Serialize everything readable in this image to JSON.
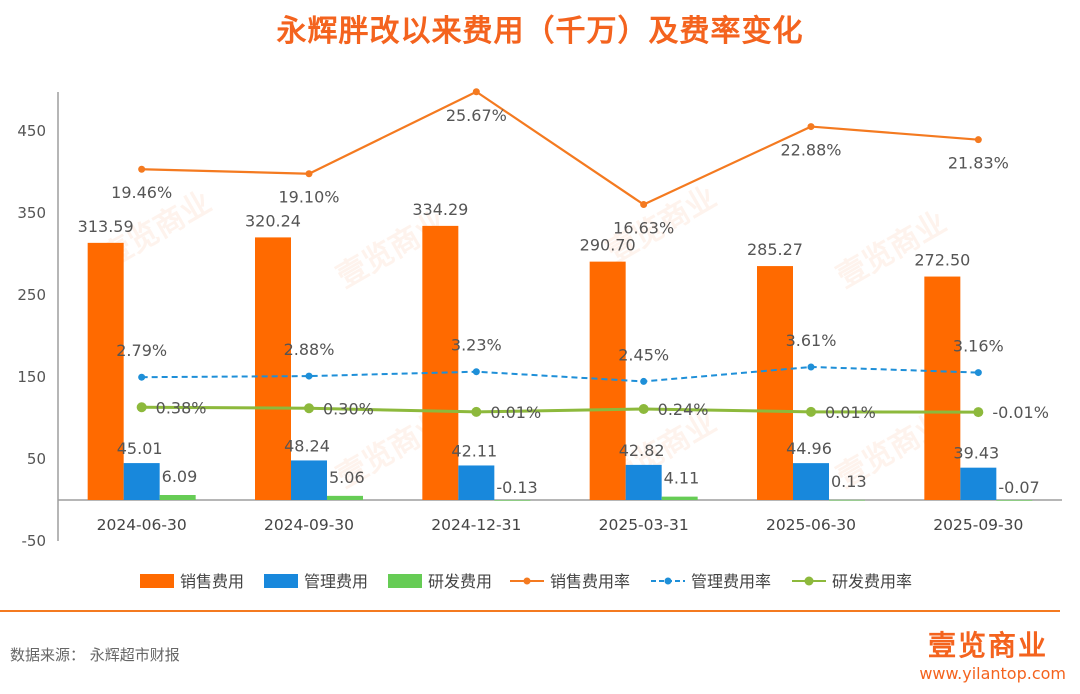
{
  "title": "永辉胖改以来费用（千万）及费率变化",
  "source": "数据来源：  永辉超市财报",
  "brand": {
    "logo": "壹览商业",
    "url": "www.yilantop.com"
  },
  "colors": {
    "title": "#F4631E",
    "sales": "#FF6A00",
    "admin": "#1888DC",
    "rd": "#66CC55",
    "rate_sales": "#F47A20",
    "rate_admin": "#1E8FD8",
    "rate_rd": "#8DB93C",
    "footer_rule": "#F47A20"
  },
  "chart_data": {
    "type": "bar",
    "categories": [
      "2024-06-30",
      "2024-09-30",
      "2024-12-31",
      "2025-03-31",
      "2025-06-30",
      "2025-09-30"
    ],
    "y_ticks": [
      "450",
      "350",
      "250",
      "150",
      "50",
      "-50"
    ],
    "ylim": [
      -50,
      480
    ],
    "grid": false,
    "legend_position": "bottom",
    "bar_series": [
      {
        "name": "销售费用",
        "values": [
          313.59,
          320.24,
          334.29,
          290.7,
          285.27,
          272.5
        ],
        "labels": [
          "313.59",
          "320.24",
          "334.29",
          "290.70",
          "285.27",
          "272.50"
        ]
      },
      {
        "name": "管理费用",
        "values": [
          45.01,
          48.24,
          42.11,
          42.82,
          44.96,
          39.43
        ],
        "labels": [
          "45.01",
          "48.24",
          "42.11",
          "42.82",
          "44.96",
          "39.43"
        ]
      },
      {
        "name": "研发费用",
        "values": [
          6.09,
          5.06,
          -0.13,
          4.11,
          0.13,
          -0.07
        ],
        "labels": [
          "6.09",
          "5.06",
          "-0.13",
          "4.11",
          "0.13",
          "-0.07"
        ]
      }
    ],
    "rate_series": [
      {
        "name": "销售费用率",
        "values": [
          19.46,
          19.1,
          25.67,
          16.63,
          22.88,
          21.83
        ],
        "labels": [
          "19.46%",
          "19.10%",
          "25.67%",
          "16.63%",
          "22.88%",
          "21.83%"
        ]
      },
      {
        "name": "管理费用率",
        "values": [
          2.79,
          2.88,
          3.23,
          2.45,
          3.61,
          3.16
        ],
        "labels": [
          "2.79%",
          "2.88%",
          "3.23%",
          "2.45%",
          "3.61%",
          "3.16%"
        ]
      },
      {
        "name": "研发费用率",
        "values": [
          0.38,
          0.3,
          0.01,
          0.24,
          0.01,
          -0.01
        ],
        "labels": [
          "0.38%",
          "0.30%",
          "0.01%",
          "0.24%",
          "0.01%",
          "-0.01%"
        ]
      }
    ],
    "legend": [
      "销售费用",
      "管理费用",
      "研发费用",
      "销售费用率",
      "管理费用率",
      "研发费用率"
    ]
  }
}
